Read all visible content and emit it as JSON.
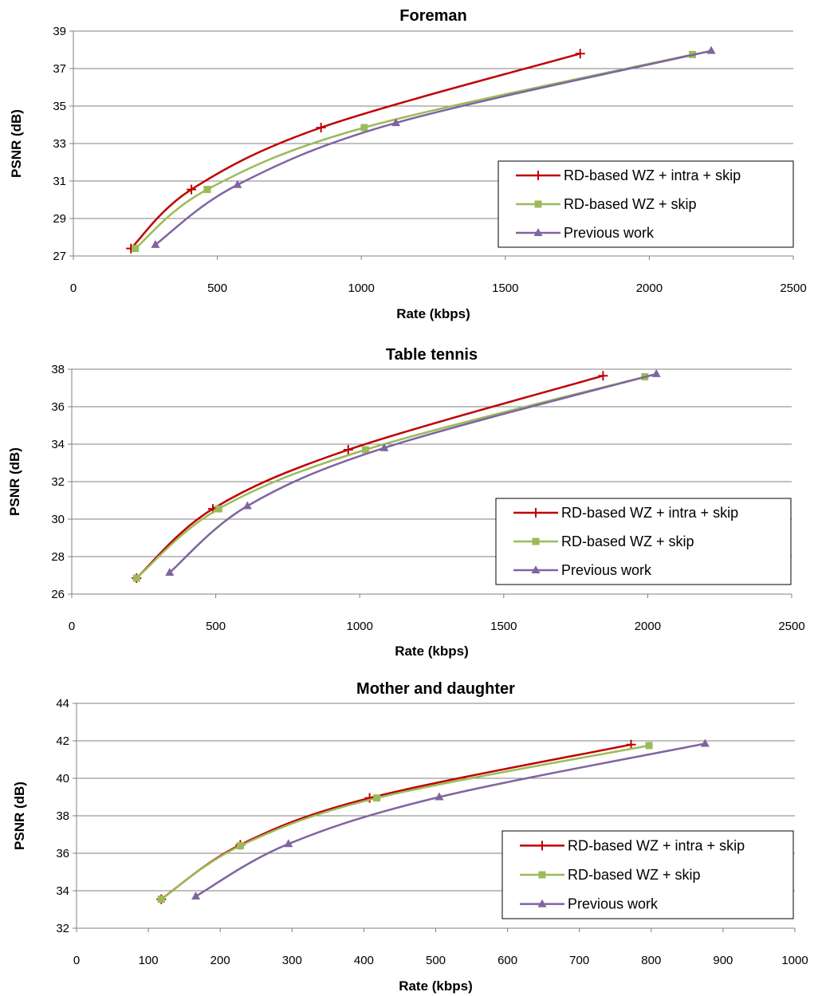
{
  "colors": {
    "series_0": "#c00000",
    "series_1": "#9bbb59",
    "series_2": "#8064a2",
    "grid": "#808080",
    "axis": "#808080"
  },
  "chart_data": [
    {
      "type": "line",
      "title": "Foreman",
      "xlabel": "Rate (kbps)",
      "ylabel": "PSNR (dB)",
      "xlim": [
        0,
        2500
      ],
      "ylim": [
        27,
        39
      ],
      "xticks": [
        0,
        500,
        1000,
        1500,
        2000,
        2500
      ],
      "yticks": [
        27,
        29,
        31,
        33,
        35,
        37,
        39
      ],
      "grid": true,
      "legend_position": "right",
      "series": [
        {
          "name": "RD-based WZ + intra + skip",
          "marker": "plus",
          "x": [
            200,
            410,
            860,
            1760
          ],
          "y": [
            27.4,
            30.55,
            33.85,
            37.8
          ]
        },
        {
          "name": "RD-based WZ + skip",
          "marker": "square",
          "x": [
            215,
            465,
            1010,
            2150
          ],
          "y": [
            27.4,
            30.55,
            33.85,
            37.75
          ]
        },
        {
          "name": "Previous work",
          "marker": "triangle",
          "x": [
            285,
            570,
            1120,
            2215
          ],
          "y": [
            27.6,
            30.8,
            34.1,
            37.95
          ]
        }
      ]
    },
    {
      "type": "line",
      "title": "Table tennis",
      "xlabel": "Rate (kbps)",
      "ylabel": "PSNR (dB)",
      "xlim": [
        0,
        2500
      ],
      "ylim": [
        26,
        38
      ],
      "xticks": [
        0,
        500,
        1000,
        1500,
        2000,
        2500
      ],
      "yticks": [
        26,
        28,
        30,
        32,
        34,
        36,
        38
      ],
      "grid": true,
      "legend_position": "right",
      "series": [
        {
          "name": "RD-based WZ + intra + skip",
          "marker": "plus",
          "x": [
            225,
            490,
            960,
            1845
          ],
          "y": [
            26.85,
            30.55,
            33.7,
            37.65
          ]
        },
        {
          "name": "RD-based WZ + skip",
          "marker": "square",
          "x": [
            225,
            510,
            1020,
            1990
          ],
          "y": [
            26.85,
            30.55,
            33.7,
            37.6
          ]
        },
        {
          "name": "Previous work",
          "marker": "triangle",
          "x": [
            340,
            610,
            1085,
            2030
          ],
          "y": [
            27.15,
            30.7,
            33.8,
            37.75
          ]
        }
      ]
    },
    {
      "type": "line",
      "title": "Mother and daughter",
      "xlabel": "Rate (kbps)",
      "ylabel": "PSNR (dB)",
      "xlim": [
        0,
        1000
      ],
      "ylim": [
        32,
        44
      ],
      "xticks": [
        0,
        100,
        200,
        300,
        400,
        500,
        600,
        700,
        800,
        900,
        1000
      ],
      "yticks": [
        32,
        34,
        36,
        38,
        40,
        42,
        44
      ],
      "grid": true,
      "legend_position": "right",
      "series": [
        {
          "name": "RD-based WZ + intra + skip",
          "marker": "plus",
          "x": [
            118,
            228,
            408,
            772
          ],
          "y": [
            33.55,
            36.45,
            38.95,
            41.8
          ]
        },
        {
          "name": "RD-based WZ + skip",
          "marker": "square",
          "x": [
            118,
            228,
            418,
            797
          ],
          "y": [
            33.55,
            36.4,
            38.95,
            41.75
          ]
        },
        {
          "name": "Previous work",
          "marker": "triangle",
          "x": [
            166,
            295,
            505,
            875
          ],
          "y": [
            33.7,
            36.5,
            39.0,
            41.85
          ]
        }
      ]
    }
  ]
}
